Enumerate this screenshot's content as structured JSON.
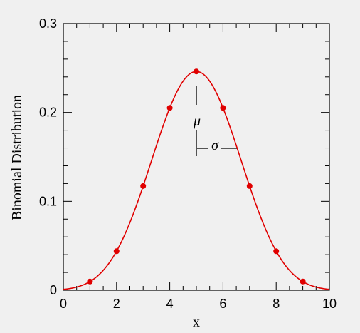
{
  "chart_data": {
    "type": "line",
    "title": "",
    "xlabel": "x",
    "ylabel": "Binomial Distribution",
    "xlim": [
      0,
      10
    ],
    "ylim": [
      0,
      0.3
    ],
    "x_ticks": [
      "0",
      "2",
      "4",
      "6",
      "8",
      "10"
    ],
    "y_ticks": [
      "0",
      "0.1",
      "0.2",
      "0.3"
    ],
    "grid": false,
    "colors": {
      "series": "#e00000",
      "axes": "#000000",
      "background": "#f0f0f0"
    },
    "points": {
      "x": [
        1,
        2,
        3,
        4,
        5,
        6,
        7,
        8,
        9
      ],
      "y": [
        0.0098,
        0.0439,
        0.1172,
        0.2051,
        0.2461,
        0.2051,
        0.1172,
        0.0439,
        0.0098
      ]
    },
    "curve": {
      "n": 10,
      "p": 0.5
    },
    "annotations": [
      {
        "text": "μ",
        "x": 5,
        "y": 0.19
      },
      {
        "text": "σ",
        "x": 5.58,
        "y": 0.163
      }
    ]
  }
}
